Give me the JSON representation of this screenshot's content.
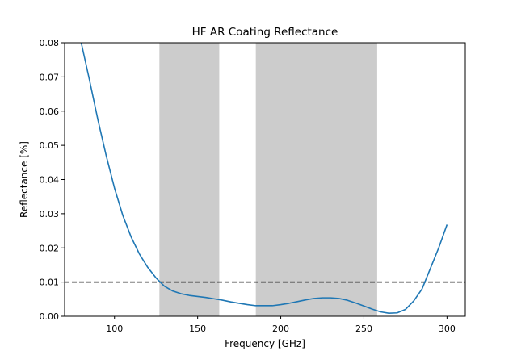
{
  "chart_data": {
    "type": "line",
    "title": "HF AR Coating Reflectance",
    "xlabel": "Frequency [GHz]",
    "ylabel": "Reflectance [%]",
    "xlim": [
      70,
      311
    ],
    "ylim": [
      0,
      0.08
    ],
    "x_ticks": [
      100,
      150,
      200,
      250,
      300
    ],
    "y_ticks": [
      0.0,
      0.01,
      0.02,
      0.03,
      0.04,
      0.05,
      0.06,
      0.07,
      0.08
    ],
    "x_tick_labels": [
      "100",
      "150",
      "200",
      "250",
      "300"
    ],
    "y_tick_labels": [
      "0.00",
      "0.01",
      "0.02",
      "0.03",
      "0.04",
      "0.05",
      "0.06",
      "0.07",
      "0.08"
    ],
    "grid": false,
    "bands": [
      {
        "x0": 127,
        "x1": 163,
        "color": "#cccccc"
      },
      {
        "x0": 185,
        "x1": 258,
        "color": "#cccccc"
      }
    ],
    "reference_line": {
      "y": 0.01,
      "style": "dashed",
      "color": "#000000"
    },
    "series": [
      {
        "color": "#1f77b4",
        "x": [
          80,
          85,
          90,
          95,
          100,
          105,
          110,
          115,
          120,
          125,
          130,
          135,
          140,
          145,
          150,
          155,
          160,
          165,
          170,
          175,
          180,
          185,
          190,
          195,
          200,
          205,
          210,
          215,
          220,
          225,
          230,
          235,
          240,
          245,
          250,
          255,
          260,
          265,
          270,
          275,
          280,
          285,
          290,
          295,
          300
        ],
        "y": [
          0.08,
          0.069,
          0.0575,
          0.047,
          0.0375,
          0.0295,
          0.0232,
          0.0182,
          0.0143,
          0.0112,
          0.0088,
          0.0074,
          0.0066,
          0.0061,
          0.0058,
          0.0055,
          0.0051,
          0.0047,
          0.0042,
          0.0038,
          0.0034,
          0.0031,
          0.0031,
          0.0031,
          0.0034,
          0.0038,
          0.0043,
          0.0048,
          0.0052,
          0.0054,
          0.0054,
          0.0052,
          0.0047,
          0.0039,
          0.003,
          0.0021,
          0.0013,
          0.0009,
          0.001,
          0.002,
          0.0045,
          0.008,
          0.014,
          0.02,
          0.0268
        ]
      }
    ]
  }
}
